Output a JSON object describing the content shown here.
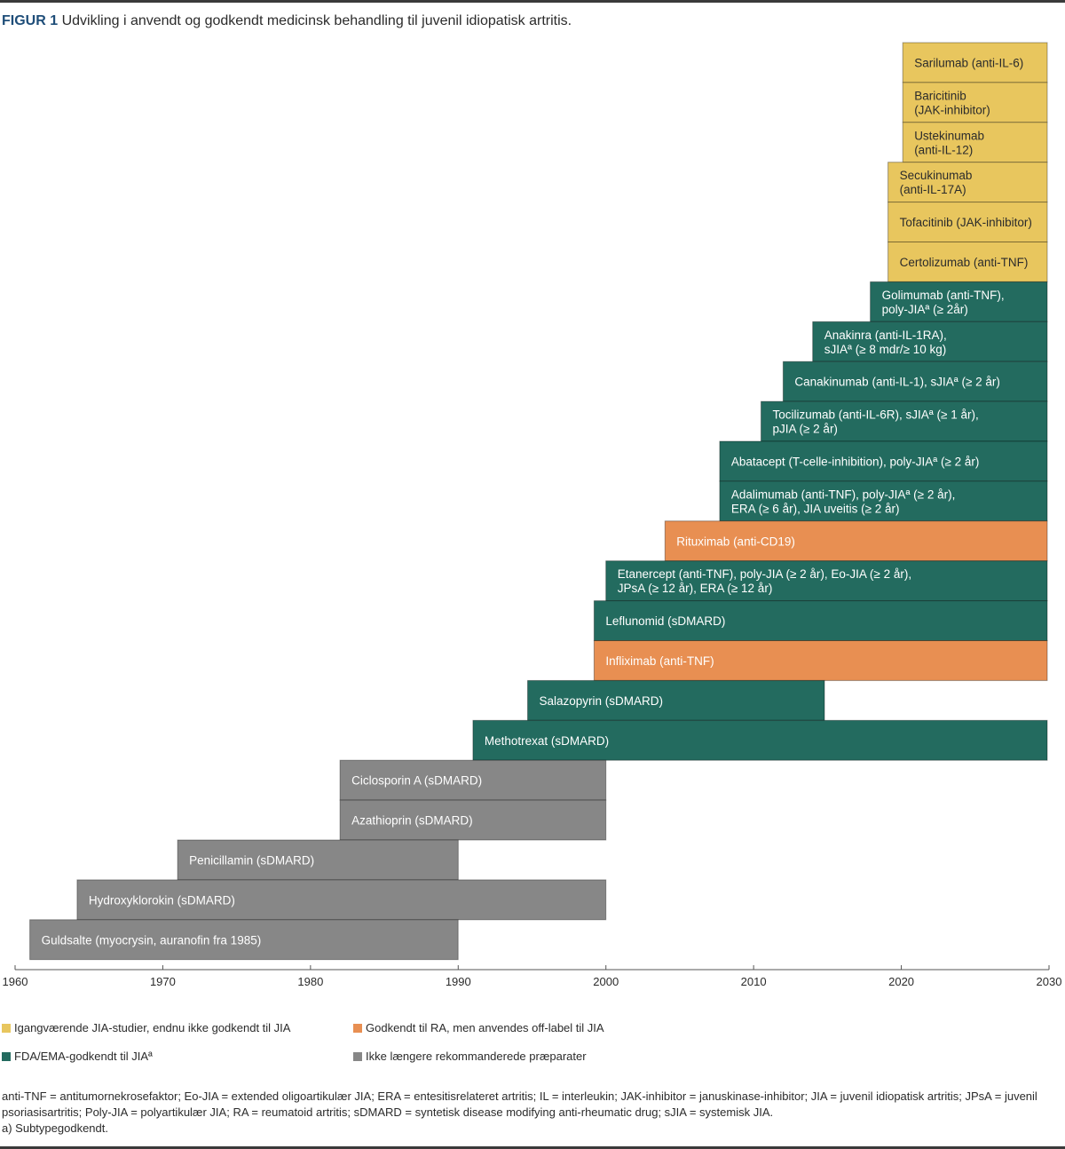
{
  "figure": {
    "label": "FIGUR 1",
    "title": "Udvikling i anvendt og godkendt medicinsk behandling til juvenil idiopatisk artritis."
  },
  "colors": {
    "ongoing": "#e8c65e",
    "offlabel": "#e88f52",
    "approved": "#236b5f",
    "obsolete": "#878787"
  },
  "chart_data": {
    "type": "bar",
    "orientation": "horizontal-timeline",
    "title": "Udvikling i anvendt og godkendt medicinsk behandling til juvenil idiopatisk artritis.",
    "xlabel": "",
    "ylabel": "",
    "xlim": [
      1960,
      2030
    ],
    "xticks": [
      "1960",
      "1970",
      "1980",
      "1990",
      "2000",
      "2010",
      "2020",
      "2030"
    ],
    "grid": false,
    "legend_position": "bottom",
    "bars": [
      {
        "label": [
          "Sarilumab (anti-IL-6)"
        ],
        "start": 2020.1,
        "end": 2030,
        "category": "ongoing"
      },
      {
        "label": [
          "Baricitinib",
          "(JAK-inhibitor)"
        ],
        "start": 2020.1,
        "end": 2030,
        "category": "ongoing"
      },
      {
        "label": [
          "Ustekinumab",
          "(anti-IL-12)"
        ],
        "start": 2020.1,
        "end": 2030,
        "category": "ongoing"
      },
      {
        "label": [
          "Secukinumab",
          "(anti-IL-17A)"
        ],
        "start": 2019.1,
        "end": 2030,
        "category": "ongoing"
      },
      {
        "label": [
          "Tofacitinib (JAK-inhibitor)"
        ],
        "start": 2019.1,
        "end": 2030,
        "category": "ongoing"
      },
      {
        "label": [
          "Certolizumab (anti-TNF)"
        ],
        "start": 2019.1,
        "end": 2030,
        "category": "ongoing"
      },
      {
        "label": [
          "Golimumab (anti-TNF),",
          "poly-JIAª (≥ 2år)"
        ],
        "start": 2017.9,
        "end": 2030,
        "category": "approved"
      },
      {
        "label": [
          "Anakinra (anti-IL-1RA),",
          "sJIAª (≥ 8 mdr/≥ 10 kg)"
        ],
        "start": 2014,
        "end": 2030,
        "category": "approved"
      },
      {
        "label": [
          "Canakinumab (anti-IL-1), sJIAª (≥ 2 år)"
        ],
        "start": 2012,
        "end": 2030,
        "category": "approved"
      },
      {
        "label": [
          "Tocilizumab (anti-IL-6R), sJIAª (≥ 1 år),",
          "pJIA (≥ 2 år)"
        ],
        "start": 2010.5,
        "end": 2030,
        "category": "approved"
      },
      {
        "label": [
          "Abatacept (T-celle-inhibition), poly-JIAª (≥ 2 år)"
        ],
        "start": 2007.7,
        "end": 2030,
        "category": "approved"
      },
      {
        "label": [
          "Adalimumab (anti-TNF), poly-JIAª (≥ 2 år),",
          "ERA (≥ 6 år), JIA uveitis (≥ 2 år)"
        ],
        "start": 2007.7,
        "end": 2030,
        "category": "approved"
      },
      {
        "label": [
          "Rituximab (anti-CD19)"
        ],
        "start": 2004,
        "end": 2030,
        "category": "offlabel"
      },
      {
        "label": [
          "Etanercept (anti-TNF), poly-JIA (≥ 2 år), Eo-JIA (≥ 2 år),",
          "JPsA (≥ 12 år), ERA (≥ 12 år)"
        ],
        "start": 2000,
        "end": 2030,
        "category": "approved"
      },
      {
        "label": [
          "Leflunomid (sDMARD)"
        ],
        "start": 1999.2,
        "end": 2030,
        "category": "approved"
      },
      {
        "label": [
          "Infliximab (anti-TNF)"
        ],
        "start": 1999.2,
        "end": 2030,
        "category": "offlabel"
      },
      {
        "label": [
          "Salazopyrin (sDMARD)"
        ],
        "start": 1994.7,
        "end": 2014.8,
        "category": "approved"
      },
      {
        "label": [
          "Methotrexat (sDMARD)"
        ],
        "start": 1991,
        "end": 2030,
        "category": "approved"
      },
      {
        "label": [
          "Ciclosporin A (sDMARD)"
        ],
        "start": 1982,
        "end": 2000,
        "category": "obsolete"
      },
      {
        "label": [
          "Azathioprin (sDMARD)"
        ],
        "start": 1982,
        "end": 2000,
        "category": "obsolete"
      },
      {
        "label": [
          "Penicillamin (sDMARD)"
        ],
        "start": 1971,
        "end": 1990,
        "category": "obsolete"
      },
      {
        "label": [
          "Hydroxyklorokin (sDMARD)"
        ],
        "start": 1964.2,
        "end": 2000,
        "category": "obsolete"
      },
      {
        "label": [
          "Guldsalte (myocrysin, auranofin fra 1985)"
        ],
        "start": 1961,
        "end": 1990,
        "category": "obsolete"
      }
    ],
    "legend": [
      {
        "key": "ongoing",
        "label": "Igangværende JIA-studier, endnu ikke godkendt til JIA"
      },
      {
        "key": "offlabel",
        "label": "Godkendt til RA, men anvendes off-label til JIA"
      },
      {
        "key": "approved",
        "label": "FDA/EMA-godkendt til JIAª"
      },
      {
        "key": "obsolete",
        "label": "Ikke længere rekommanderede præparater"
      }
    ]
  },
  "legend": {
    "items": [
      {
        "key": "ongoing",
        "label": "Igangværende JIA-studier, endnu ikke godkendt til JIA"
      },
      {
        "key": "offlabel",
        "label": "Godkendt til RA, men anvendes off-label til JIA"
      },
      {
        "key": "approved",
        "label": "FDA/EMA-godkendt til JIAª"
      },
      {
        "key": "obsolete",
        "label": "Ikke længere rekommanderede præparater"
      }
    ]
  },
  "notes": {
    "abbreviations": "anti-TNF = antitumornekrosefaktor; Eo-JIA = extended oligoartikulær JIA;  ERA = entesitisrelateret artritis; IL = interleukin; JAK-inhibitor = januskinase-inhibitor; JIA = juvenil idiopatisk artritis; JPsA = juvenil psoriasisartritis; Poly-JIA = polyartikulær JIA; RA = reumatoid artritis; sDMARD = syntetisk disease modifying anti-rheumatic drug; sJIA = systemisk JIA.",
    "footnote": "a) Subtypegodkendt."
  }
}
